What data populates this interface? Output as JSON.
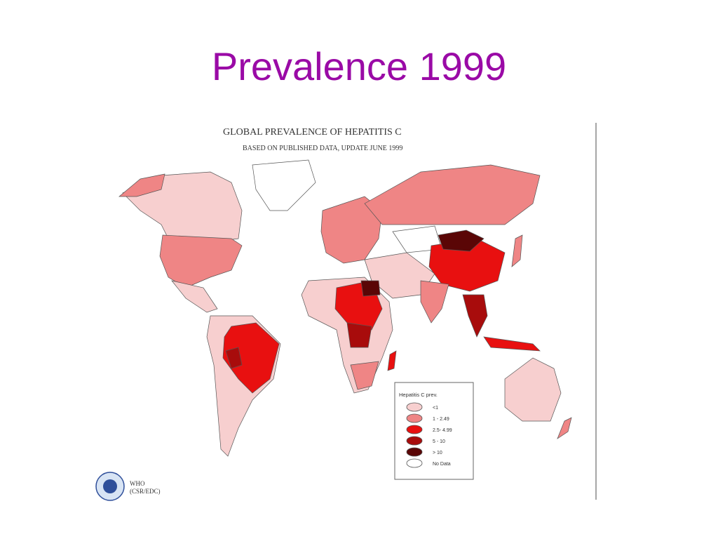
{
  "slide": {
    "title": "Prevalence 1999"
  },
  "map": {
    "title": "GLOBAL PREVALENCE  OF HEPATITIS C",
    "subtitle": "BASED ON PUBLISHED DATA, UPDATE JUNE 1999",
    "legend": {
      "title": "Hepatitis C prev.",
      "items": [
        {
          "label": "<1",
          "color": "#f7cfcf"
        },
        {
          "label": "1 - 2.49",
          "color": "#ef8585"
        },
        {
          "label": "2.5- 4.99",
          "color": "#e81010"
        },
        {
          "label": "5 - 10",
          "color": "#a80c0c"
        },
        {
          "label": "> 10",
          "color": "#5a0606"
        },
        {
          "label": "No Data",
          "color": "#ffffff"
        }
      ]
    },
    "credit": {
      "org": "WHO",
      "unit": "(CSR/EDC)"
    }
  }
}
